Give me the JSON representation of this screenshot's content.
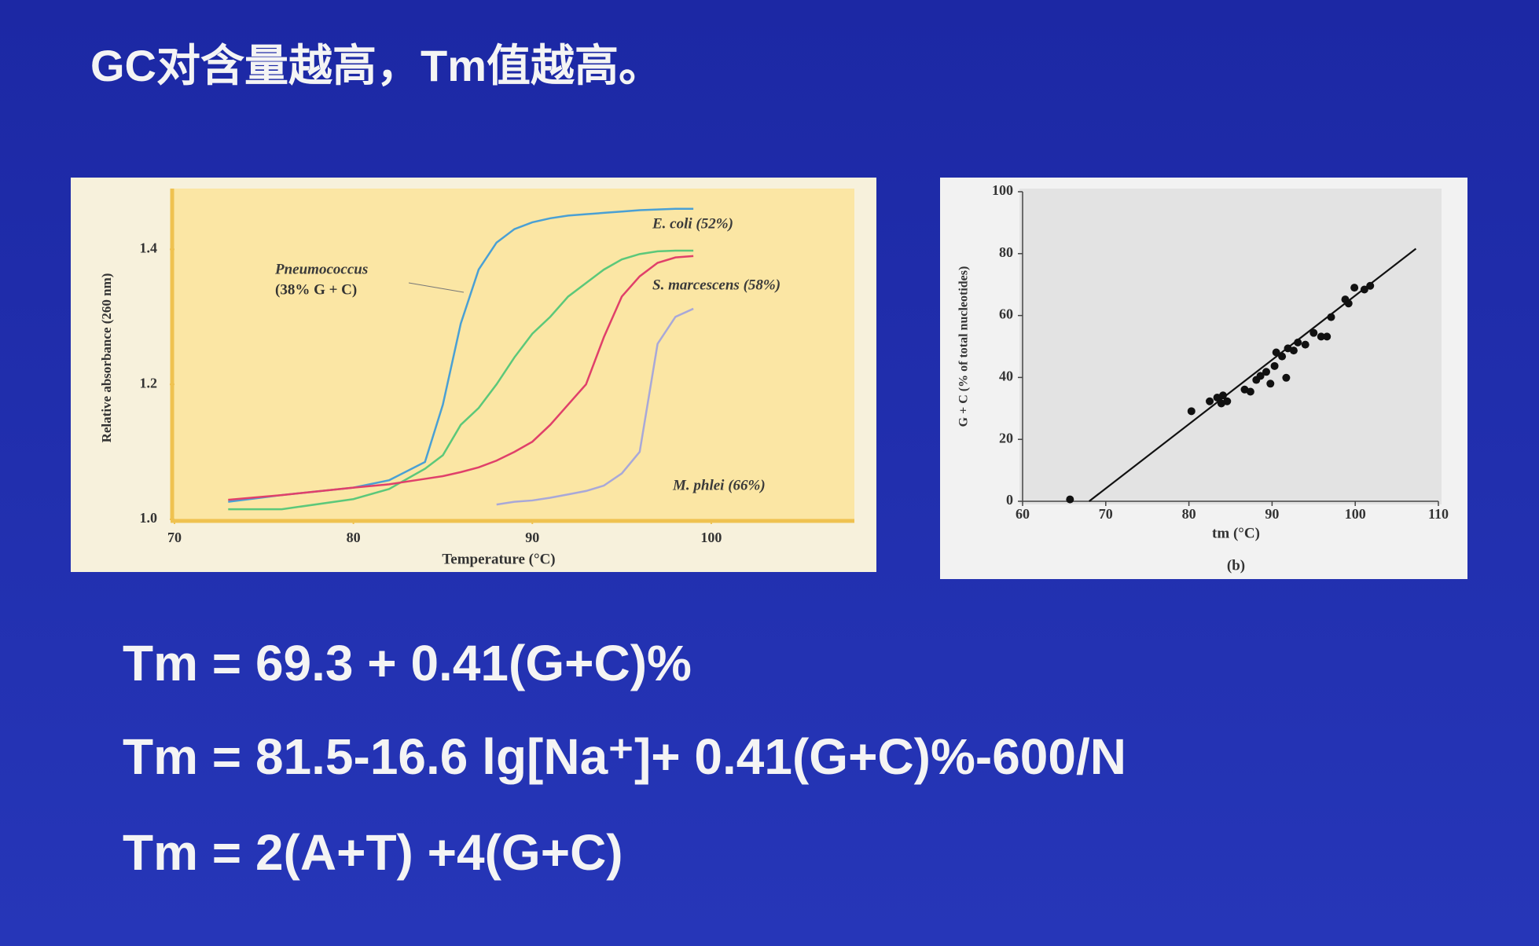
{
  "slide": {
    "title": "GC对含量越高，Tm值越高。",
    "formulas": [
      "Tm = 69.3 + 0.41(G+C)%",
      "Tm = 81.5-16.6 lg[Na⁺]+ 0.41(G+C)%-600/N",
      "Tm = 2(A+T) +4(G+C)"
    ]
  },
  "chart_data": [
    {
      "type": "line",
      "xlabel": "Temperature (°C)",
      "ylabel": "Relative absorbance (260 nm)",
      "annotations": [
        "(38% G + C)"
      ],
      "x": [
        73,
        76,
        80,
        82,
        84,
        85,
        86,
        87,
        88,
        89,
        90,
        91,
        92,
        93,
        94,
        95,
        96,
        97,
        98,
        99
      ],
      "series": [
        {
          "name": "Pneumococcus",
          "color": "#4aa0d4",
          "values": [
            1.026,
            1.036,
            1.047,
            1.058,
            1.085,
            1.17,
            1.29,
            1.37,
            1.41,
            1.43,
            1.44,
            1.446,
            1.45,
            1.452,
            1.454,
            1.456,
            1.458,
            1.459,
            1.46,
            1.46
          ]
        },
        {
          "name": "E. coli (52%)",
          "color": "#5cc87a",
          "values": [
            1.015,
            1.015,
            1.03,
            1.045,
            1.075,
            1.095,
            1.14,
            1.165,
            1.2,
            1.24,
            1.275,
            1.3,
            1.33,
            1.35,
            1.37,
            1.385,
            1.393,
            1.397,
            1.398,
            1.398
          ]
        },
        {
          "name": "S. marcescens (58%)",
          "color": "#e0406a",
          "values": [
            1.029,
            1.036,
            1.047,
            1.052,
            1.06,
            1.064,
            1.07,
            1.077,
            1.087,
            1.1,
            1.115,
            1.14,
            1.17,
            1.2,
            1.27,
            1.33,
            1.36,
            1.38,
            1.388,
            1.39
          ]
        },
        {
          "name": "M. phlei (66%)",
          "color": "#a8a8d8",
          "values": [
            null,
            null,
            null,
            null,
            null,
            null,
            null,
            null,
            1.022,
            1.026,
            1.028,
            1.032,
            1.037,
            1.042,
            1.05,
            1.068,
            1.1,
            1.26,
            1.3,
            1.312
          ]
        }
      ],
      "xlim": [
        70,
        108
      ],
      "xticks": [
        70,
        80,
        90,
        100
      ],
      "ylim": [
        1.0,
        1.49
      ],
      "yticks": [
        {
          "value": 1.0,
          "label": "1.0"
        },
        1.2,
        1.4
      ]
    },
    {
      "type": "scatter",
      "xlabel": "tm (°C)",
      "ylabel": "G + C (% of total nucleotides)",
      "caption": "(b)",
      "color": "#111111",
      "x": [
        65.7,
        80.3,
        82.5,
        83.4,
        84.1,
        84.6,
        83.9,
        86.7,
        87.4,
        88.1,
        88.6,
        89.3,
        89.8,
        90.3,
        90.5,
        91.2,
        91.7,
        91.9,
        92.6,
        93.1,
        94.0,
        95.0,
        95.9,
        96.6,
        97.1,
        98.8,
        99.2,
        99.9,
        101.1,
        101.8
      ],
      "values": [
        0.6,
        29.1,
        32.3,
        33.5,
        34.2,
        32.3,
        31.6,
        36.1,
        35.4,
        39.2,
        40.5,
        41.8,
        38.0,
        43.7,
        48.1,
        46.8,
        39.9,
        49.4,
        48.7,
        51.3,
        50.6,
        54.4,
        53.2,
        53.2,
        59.5,
        65.2,
        63.9,
        69.0,
        68.4,
        69.6
      ],
      "fit_line": {
        "x": [
          68.0,
          107.3
        ],
        "values": [
          0,
          81.6
        ]
      },
      "xlim": [
        60,
        110
      ],
      "xticks": [
        60,
        70,
        80,
        90,
        100,
        110
      ],
      "ylim": [
        0,
        100
      ],
      "yticks": [
        0,
        20,
        40,
        60,
        80,
        100
      ]
    }
  ]
}
